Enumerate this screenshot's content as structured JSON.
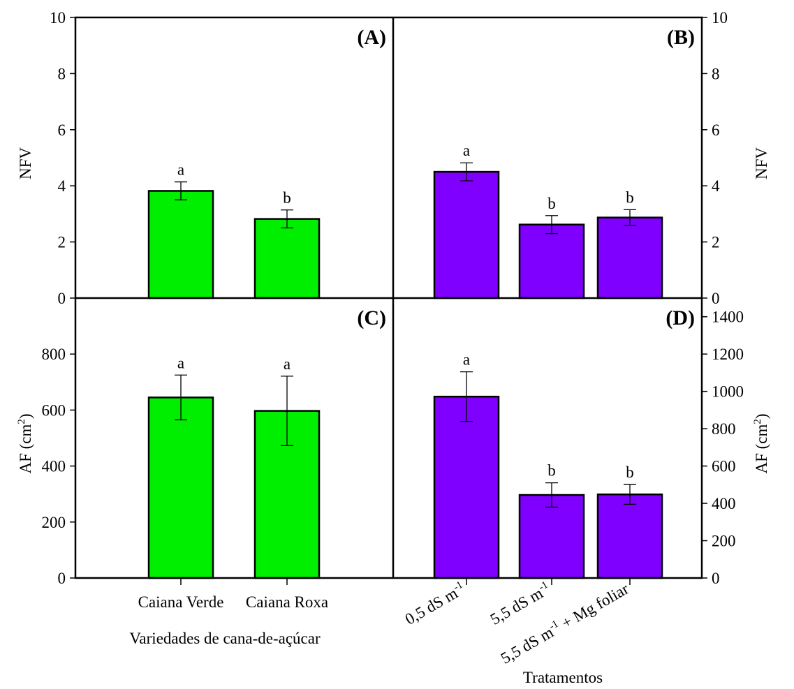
{
  "colors": {
    "variety_bars": "#00ee00",
    "treatment_bars": "#8000ff",
    "axes": "#000000"
  },
  "x_titles": {
    "left": "Variedades de cana-de-açúcar",
    "right": "Tratamentos"
  },
  "categories_varieties": [
    "Caiana Verde",
    "Caiana Roxa"
  ],
  "categories_treatments": [
    {
      "text": "0,5 dS m",
      "sup": "-1",
      "rest": ""
    },
    {
      "text": "5,5 dS m",
      "sup": "-1",
      "rest": ""
    },
    {
      "text": "5,5 dS m",
      "sup": "-1",
      "rest": " + Mg foliar"
    }
  ],
  "chart_data": [
    {
      "panel": "(A)",
      "type": "bar",
      "categories": [
        "Caiana Verde",
        "Caiana Roxa"
      ],
      "values": [
        3.82,
        2.82
      ],
      "errors": [
        0.32,
        0.32
      ],
      "letters": [
        "a",
        "b"
      ],
      "ylabel": "NFV",
      "ylim": [
        0,
        10
      ],
      "yticks": [
        0,
        2,
        4,
        6,
        8,
        10
      ],
      "ylabel_side": "left",
      "color": "#00ee00"
    },
    {
      "panel": "(B)",
      "type": "bar",
      "categories": [
        "0,5 dS m-1",
        "5,5 dS m-1",
        "5,5 dS m-1 + Mg foliar"
      ],
      "values": [
        4.5,
        2.62,
        2.87
      ],
      "errors": [
        0.32,
        0.32,
        0.28
      ],
      "letters": [
        "a",
        "b",
        "b"
      ],
      "ylabel": "NFV",
      "ylim": [
        0,
        10
      ],
      "yticks": [
        0,
        2,
        4,
        6,
        8,
        10
      ],
      "ylabel_side": "right",
      "color": "#8000ff"
    },
    {
      "panel": "(C)",
      "type": "bar",
      "categories": [
        "Caiana Verde",
        "Caiana Roxa"
      ],
      "values": [
        645,
        597
      ],
      "errors": [
        80,
        124
      ],
      "letters": [
        "a",
        "a"
      ],
      "ylabel": "AF (cm",
      "ylabel_sup": "2",
      "ylabel_end": ")",
      "ylim": [
        0,
        1000
      ],
      "yticks": [
        0,
        200,
        400,
        600,
        800
      ],
      "ylabel_side": "left",
      "color": "#00ee00"
    },
    {
      "panel": "(D)",
      "type": "bar",
      "categories": [
        "0,5 dS m-1",
        "5,5 dS m-1",
        "5,5 dS m-1 + Mg foliar"
      ],
      "values": [
        972,
        445,
        448
      ],
      "errors": [
        133,
        65,
        53
      ],
      "letters": [
        "a",
        "b",
        "b"
      ],
      "ylabel": "AF (cm",
      "ylabel_sup": "2",
      "ylabel_end": ")",
      "ylim": [
        0,
        1500
      ],
      "yticks": [
        0,
        200,
        400,
        600,
        800,
        1000,
        1200,
        1400
      ],
      "ylabel_side": "right",
      "color": "#8000ff"
    }
  ]
}
